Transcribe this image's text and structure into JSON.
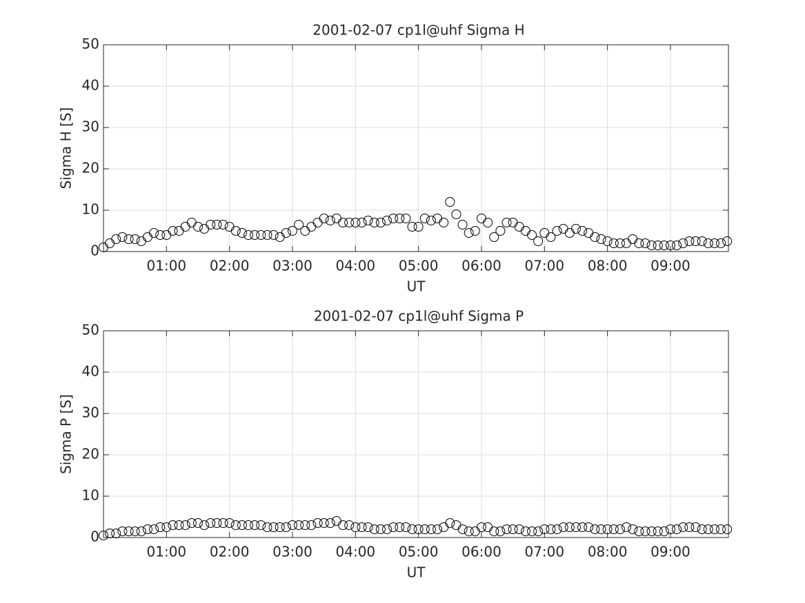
{
  "chart_data": [
    {
      "type": "scatter",
      "title": "2001-02-07  cp1l@uhf Sigma H",
      "x_label": "UT",
      "y_label": "Sigma H [S]",
      "xlim": [
        0,
        9.92
      ],
      "ylim": [
        0,
        50
      ],
      "xticks": [
        {
          "value": 1,
          "label": "01:00"
        },
        {
          "value": 2,
          "label": "02:00"
        },
        {
          "value": 3,
          "label": "03:00"
        },
        {
          "value": 4,
          "label": "04:00"
        },
        {
          "value": 5,
          "label": "05:00"
        },
        {
          "value": 6,
          "label": "06:00"
        },
        {
          "value": 7,
          "label": "07:00"
        },
        {
          "value": 8,
          "label": "08:00"
        },
        {
          "value": 9,
          "label": "09:00"
        }
      ],
      "yticks": [
        0,
        10,
        20,
        30,
        40,
        50
      ],
      "grid": true,
      "color": "#000000",
      "x": [
        0,
        0.1,
        0.2,
        0.3,
        0.4,
        0.5,
        0.6,
        0.7,
        0.8,
        0.9,
        1,
        1.1,
        1.2,
        1.3,
        1.4,
        1.5,
        1.6,
        1.7,
        1.8,
        1.9,
        2,
        2.1,
        2.2,
        2.3,
        2.4,
        2.5,
        2.6,
        2.7,
        2.8,
        2.9,
        3,
        3.1,
        3.2,
        3.3,
        3.4,
        3.5,
        3.6,
        3.7,
        3.8,
        3.9,
        4,
        4.1,
        4.2,
        4.3,
        4.4,
        4.5,
        4.6,
        4.7,
        4.8,
        4.9,
        5,
        5.1,
        5.2,
        5.3,
        5.4,
        5.5,
        5.6,
        5.7,
        5.8,
        5.9,
        6,
        6.1,
        6.2,
        6.3,
        6.4,
        6.5,
        6.6,
        6.7,
        6.8,
        6.9,
        7,
        7.1,
        7.2,
        7.3,
        7.4,
        7.5,
        7.6,
        7.7,
        7.8,
        7.9,
        8,
        8.1,
        8.2,
        8.3,
        8.4,
        8.5,
        8.6,
        8.7,
        8.8,
        8.9,
        9,
        9.1,
        9.2,
        9.3,
        9.4,
        9.5,
        9.6,
        9.7,
        9.8,
        9.9
      ],
      "values": [
        1,
        2,
        3,
        3.5,
        3,
        3,
        2.5,
        3.5,
        4.5,
        4,
        4,
        5,
        5,
        6,
        7,
        6,
        5.5,
        6.5,
        6.5,
        6.5,
        6,
        5,
        4.5,
        4,
        4,
        4,
        4,
        4,
        3.5,
        4.5,
        5,
        6.5,
        5,
        6,
        7,
        8,
        7.5,
        8,
        7,
        7,
        7,
        7,
        7.5,
        7,
        7,
        7.5,
        8,
        8,
        8,
        6,
        6,
        8,
        7.5,
        8,
        7,
        12,
        9,
        6.5,
        4.5,
        5,
        8,
        7,
        3.5,
        5,
        7,
        7,
        6,
        5,
        4,
        2.5,
        4.5,
        3.5,
        5,
        5.5,
        4.5,
        5.5,
        5,
        4.5,
        3.5,
        3,
        2.5,
        2,
        2,
        2,
        3,
        2,
        2,
        1.5,
        1.5,
        1.5,
        1.5,
        1.5,
        2,
        2.5,
        2.5,
        2.5,
        2,
        2,
        2,
        2.5
      ]
    },
    {
      "type": "scatter",
      "title": "2001-02-07  cp1l@uhf Sigma P",
      "x_label": "UT",
      "y_label": "Sigma P [S]",
      "xlim": [
        0,
        9.92
      ],
      "ylim": [
        0,
        50
      ],
      "xticks": [
        {
          "value": 1,
          "label": "01:00"
        },
        {
          "value": 2,
          "label": "02:00"
        },
        {
          "value": 3,
          "label": "03:00"
        },
        {
          "value": 4,
          "label": "04:00"
        },
        {
          "value": 5,
          "label": "05:00"
        },
        {
          "value": 6,
          "label": "06:00"
        },
        {
          "value": 7,
          "label": "07:00"
        },
        {
          "value": 8,
          "label": "08:00"
        },
        {
          "value": 9,
          "label": "09:00"
        }
      ],
      "yticks": [
        0,
        10,
        20,
        30,
        40,
        50
      ],
      "grid": true,
      "color": "#000000",
      "x": [
        0,
        0.1,
        0.2,
        0.3,
        0.4,
        0.5,
        0.6,
        0.7,
        0.8,
        0.9,
        1,
        1.1,
        1.2,
        1.3,
        1.4,
        1.5,
        1.6,
        1.7,
        1.8,
        1.9,
        2,
        2.1,
        2.2,
        2.3,
        2.4,
        2.5,
        2.6,
        2.7,
        2.8,
        2.9,
        3,
        3.1,
        3.2,
        3.3,
        3.4,
        3.5,
        3.6,
        3.7,
        3.8,
        3.9,
        4,
        4.1,
        4.2,
        4.3,
        4.4,
        4.5,
        4.6,
        4.7,
        4.8,
        4.9,
        5,
        5.1,
        5.2,
        5.3,
        5.4,
        5.5,
        5.6,
        5.7,
        5.8,
        5.9,
        6,
        6.1,
        6.2,
        6.3,
        6.4,
        6.5,
        6.6,
        6.7,
        6.8,
        6.9,
        7,
        7.1,
        7.2,
        7.3,
        7.4,
        7.5,
        7.6,
        7.7,
        7.8,
        7.9,
        8,
        8.1,
        8.2,
        8.3,
        8.4,
        8.5,
        8.6,
        8.7,
        8.8,
        8.9,
        9,
        9.1,
        9.2,
        9.3,
        9.4,
        9.5,
        9.6,
        9.7,
        9.8,
        9.9
      ],
      "values": [
        0.5,
        1,
        1,
        1.5,
        1.5,
        1.5,
        1.5,
        2,
        2,
        2.5,
        2.5,
        3,
        3,
        3,
        3.5,
        3.5,
        3,
        3.5,
        3.5,
        3.5,
        3.5,
        3,
        3,
        3,
        3,
        3,
        2.5,
        2.5,
        2.5,
        2.5,
        3,
        3,
        3,
        3,
        3.5,
        3.5,
        3.5,
        4,
        3,
        3,
        2.5,
        2.5,
        2.5,
        2,
        2,
        2,
        2.5,
        2.5,
        2.5,
        2,
        2,
        2,
        2,
        2,
        2.5,
        3.5,
        3,
        2,
        1.5,
        1.5,
        2.5,
        2.5,
        1.5,
        1.5,
        2,
        2,
        2,
        1.5,
        1.5,
        1.5,
        2,
        2,
        2,
        2.5,
        2.5,
        2.5,
        2.5,
        2.5,
        2,
        2,
        2,
        2,
        2,
        2.5,
        2,
        1.5,
        1.5,
        1.5,
        1.5,
        1.5,
        2,
        2,
        2.5,
        2.5,
        2.5,
        2,
        2,
        2,
        2,
        2
      ]
    }
  ]
}
